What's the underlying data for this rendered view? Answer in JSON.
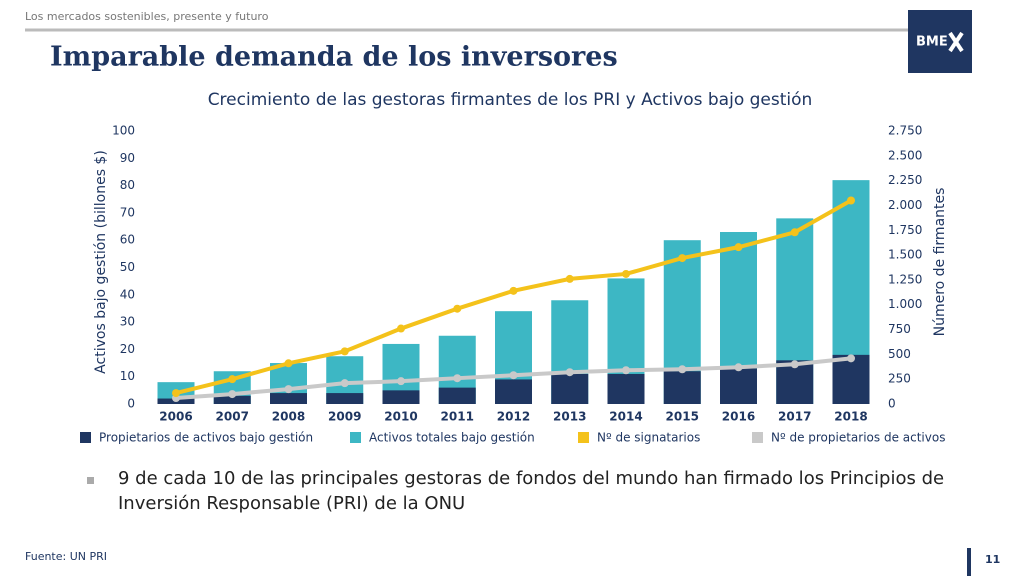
{
  "header": {
    "subtitle": "Los mercados sostenibles, presente y futuro",
    "title": "Imparable demanda de los inversores",
    "logo": "BME"
  },
  "chart_data": {
    "type": "combo",
    "title": "Crecimiento de las gestoras firmantes de los PRI y Activos bajo gestión",
    "y_label": "Activos bajo gestión (billones $)",
    "y2_label": "Número de firmantes",
    "categories": [
      "2006",
      "2007",
      "2008",
      "2009",
      "2010",
      "2011",
      "2012",
      "2013",
      "2014",
      "2015",
      "2016",
      "2017",
      "2018"
    ],
    "series": [
      {
        "name": "Propietarios de activos bajo gestión",
        "type": "bar",
        "color": "#1f3661",
        "values": [
          2,
          3,
          4,
          4,
          5,
          6,
          9,
          11,
          11,
          12,
          13,
          16,
          18
        ]
      },
      {
        "name": "Activos totales bajo gestión",
        "type": "bar",
        "color": "#3db7c4",
        "values": [
          8,
          12,
          15,
          17.5,
          22,
          25,
          34,
          38,
          46,
          60,
          63,
          68,
          82
        ]
      },
      {
        "name": "Nº de signatarios",
        "type": "line",
        "axis": "y2",
        "color": "#f4c21b",
        "values": [
          110,
          250,
          410,
          530,
          760,
          960,
          1140,
          1260,
          1310,
          1470,
          1580,
          1730,
          2050
        ]
      },
      {
        "name": "Nº de propietarios de activos",
        "type": "line",
        "axis": "y2",
        "color": "#c9c9c9",
        "values": [
          60,
          100,
          150,
          210,
          230,
          260,
          290,
          320,
          340,
          350,
          370,
          400,
          460
        ]
      }
    ],
    "ylim": [
      0,
      100
    ],
    "yticks": [
      0,
      10,
      20,
      30,
      40,
      50,
      60,
      70,
      80,
      90,
      100
    ],
    "y2lim": [
      0,
      2750
    ],
    "y2ticks": [
      0,
      250,
      500,
      750,
      {
        "value": 1000,
        "label": "1.000"
      },
      {
        "value": 1250,
        "label": "1.250"
      },
      {
        "value": 1500,
        "label": "1.500"
      },
      {
        "value": 1750,
        "label": "1.750"
      },
      {
        "value": 2000,
        "label": "2.000"
      },
      {
        "value": 2250,
        "label": "2.250"
      },
      {
        "value": 2500,
        "label": "2.500"
      },
      {
        "value": 2750,
        "label": "2.750"
      }
    ],
    "grid": false,
    "legend": "bottom"
  },
  "bullet": "9 de cada 10 de las principales gestoras de fondos del mundo han firmado los Principios de Inversión Responsable (PRI) de la ONU",
  "source": "Fuente: UN PRI",
  "page_number": "11"
}
